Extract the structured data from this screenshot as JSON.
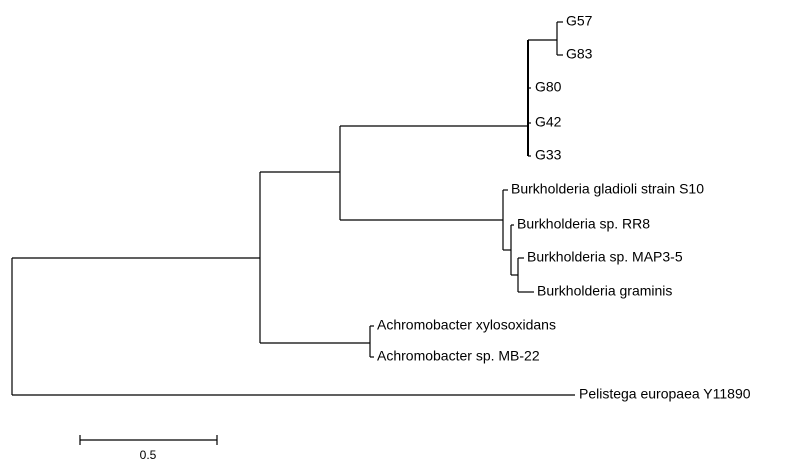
{
  "nodes": [
    {
      "label": "G57"
    },
    {
      "label": "G83"
    },
    {
      "label": "G80"
    },
    {
      "label": "G42"
    },
    {
      "label": "G33"
    },
    {
      "label": "Burkholderia gladioli strain S10"
    },
    {
      "label": "Burkholderia sp. RR8"
    },
    {
      "label": "Burkholderia sp. MAP3-5"
    },
    {
      "label": "Burkholderia graminis"
    },
    {
      "label": "Achromobacter xylosoxidans"
    },
    {
      "label": "Achromobacter sp. MB-22"
    },
    {
      "label": "Pelistega europaea Y11890"
    }
  ],
  "scale_bar": {
    "label": "0.5"
  }
}
